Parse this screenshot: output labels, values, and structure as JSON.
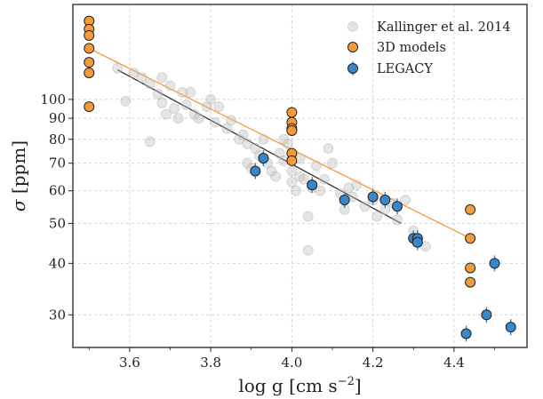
{
  "chart_data": {
    "type": "scatter",
    "xlabel": "log g [cm s",
    "xlabel_sup": "−2",
    "xlabel_close": "]",
    "ylabel_symbol": "σ",
    "ylabel_unit": "[ppm]",
    "yscale": "log",
    "xlim": [
      3.46,
      4.58
    ],
    "ylim": [
      25,
      170
    ],
    "x_ticks": [
      3.6,
      3.8,
      4.0,
      4.2,
      4.4
    ],
    "x_tick_labels": [
      "3.6",
      "3.8",
      "4.0",
      "4.2",
      "4.4"
    ],
    "y_ticks": [
      30,
      40,
      50,
      60,
      70,
      80,
      90,
      100
    ],
    "y_tick_labels": [
      "30",
      "40",
      "50",
      "60",
      "70",
      "80",
      "90",
      "100"
    ],
    "grid": true,
    "legend_position": "top-right",
    "series": [
      {
        "name": "Kallinger et al. 2014",
        "color": "#cccccc",
        "marker": "circle-faded",
        "points": [
          [
            3.57,
            119
          ],
          [
            3.59,
            99
          ],
          [
            3.61,
            116
          ],
          [
            3.63,
            113
          ],
          [
            3.65,
            109
          ],
          [
            3.65,
            79
          ],
          [
            3.67,
            103
          ],
          [
            3.68,
            98
          ],
          [
            3.68,
            113
          ],
          [
            3.69,
            92
          ],
          [
            3.7,
            108
          ],
          [
            3.71,
            95
          ],
          [
            3.72,
            90
          ],
          [
            3.73,
            104
          ],
          [
            3.74,
            97
          ],
          [
            3.75,
            104
          ],
          [
            3.76,
            92
          ],
          [
            3.77,
            90
          ],
          [
            3.79,
            96
          ],
          [
            3.8,
            100
          ],
          [
            3.81,
            88
          ],
          [
            3.82,
            96
          ],
          [
            3.84,
            85
          ],
          [
            3.85,
            89
          ],
          [
            3.87,
            80
          ],
          [
            3.88,
            82
          ],
          [
            3.89,
            78
          ],
          [
            3.89,
            70
          ],
          [
            3.9,
            68
          ],
          [
            3.91,
            76
          ],
          [
            3.92,
            73
          ],
          [
            3.93,
            80
          ],
          [
            3.94,
            70
          ],
          [
            3.95,
            67
          ],
          [
            3.96,
            65
          ],
          [
            3.97,
            74
          ],
          [
            3.98,
            80
          ],
          [
            3.98,
            71
          ],
          [
            3.99,
            78
          ],
          [
            4.0,
            67
          ],
          [
            4.0,
            63
          ],
          [
            4.01,
            60
          ],
          [
            4.02,
            72
          ],
          [
            4.02,
            65
          ],
          [
            4.03,
            64
          ],
          [
            4.04,
            52
          ],
          [
            4.05,
            61
          ],
          [
            4.06,
            69
          ],
          [
            4.07,
            60
          ],
          [
            4.08,
            64
          ],
          [
            4.09,
            76
          ],
          [
            4.1,
            70
          ],
          [
            4.12,
            59
          ],
          [
            4.13,
            54
          ],
          [
            4.14,
            61
          ],
          [
            4.15,
            58
          ],
          [
            4.16,
            62
          ],
          [
            4.18,
            55
          ],
          [
            4.2,
            57
          ],
          [
            4.21,
            52
          ],
          [
            4.23,
            54
          ],
          [
            4.25,
            56
          ],
          [
            4.26,
            51
          ],
          [
            4.28,
            57
          ],
          [
            4.3,
            48
          ],
          [
            4.31,
            45
          ],
          [
            4.33,
            44
          ],
          [
            4.04,
            43
          ]
        ]
      },
      {
        "name": "3D models",
        "color": "#f39b3c",
        "marker": "circle",
        "points": [
          [
            3.5,
            155
          ],
          [
            3.5,
            148
          ],
          [
            3.5,
            143
          ],
          [
            3.5,
            133
          ],
          [
            3.5,
            123
          ],
          [
            3.5,
            116
          ],
          [
            3.5,
            96
          ],
          [
            4.0,
            93
          ],
          [
            4.0,
            88
          ],
          [
            4.0,
            85
          ],
          [
            4.0,
            84
          ],
          [
            4.0,
            74
          ],
          [
            4.0,
            71
          ],
          [
            4.44,
            54
          ],
          [
            4.44,
            46
          ],
          [
            4.44,
            39
          ],
          [
            4.44,
            36
          ]
        ]
      },
      {
        "name": "LEGACY",
        "color": "#3a86c6",
        "marker": "circle-errorbar",
        "points": [
          [
            3.91,
            67
          ],
          [
            3.93,
            72
          ],
          [
            4.05,
            62
          ],
          [
            4.13,
            57
          ],
          [
            4.2,
            58
          ],
          [
            4.23,
            57
          ],
          [
            4.26,
            55
          ],
          [
            4.3,
            46
          ],
          [
            4.31,
            46
          ],
          [
            4.31,
            45
          ],
          [
            4.43,
            27
          ],
          [
            4.48,
            30
          ],
          [
            4.5,
            40
          ],
          [
            4.54,
            28
          ]
        ]
      }
    ],
    "fit_lines": [
      {
        "color": "#f39b3c",
        "x": [
          3.5,
          4.44
        ],
        "y": [
          133,
          46
        ]
      },
      {
        "color": "#333333",
        "x": [
          3.57,
          4.27
        ],
        "y": [
          118,
          50
        ]
      }
    ]
  }
}
